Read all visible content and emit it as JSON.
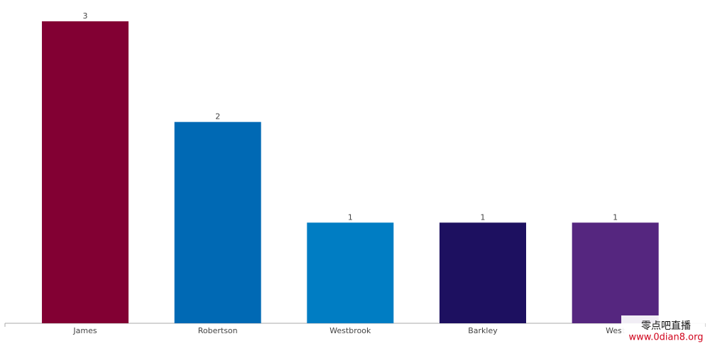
{
  "chart_data": {
    "type": "bar",
    "categories": [
      "James",
      "Robertson",
      "Westbrook",
      "Barkley",
      "West"
    ],
    "values": [
      3,
      2,
      1,
      1,
      1
    ],
    "colors": [
      "#820033",
      "#0069b4",
      "#007dc3",
      "#1d1060",
      "#55267f"
    ],
    "ylim": [
      0,
      3
    ]
  },
  "watermark": {
    "name": "零点吧直播",
    "url": "www.0dian8.org"
  }
}
